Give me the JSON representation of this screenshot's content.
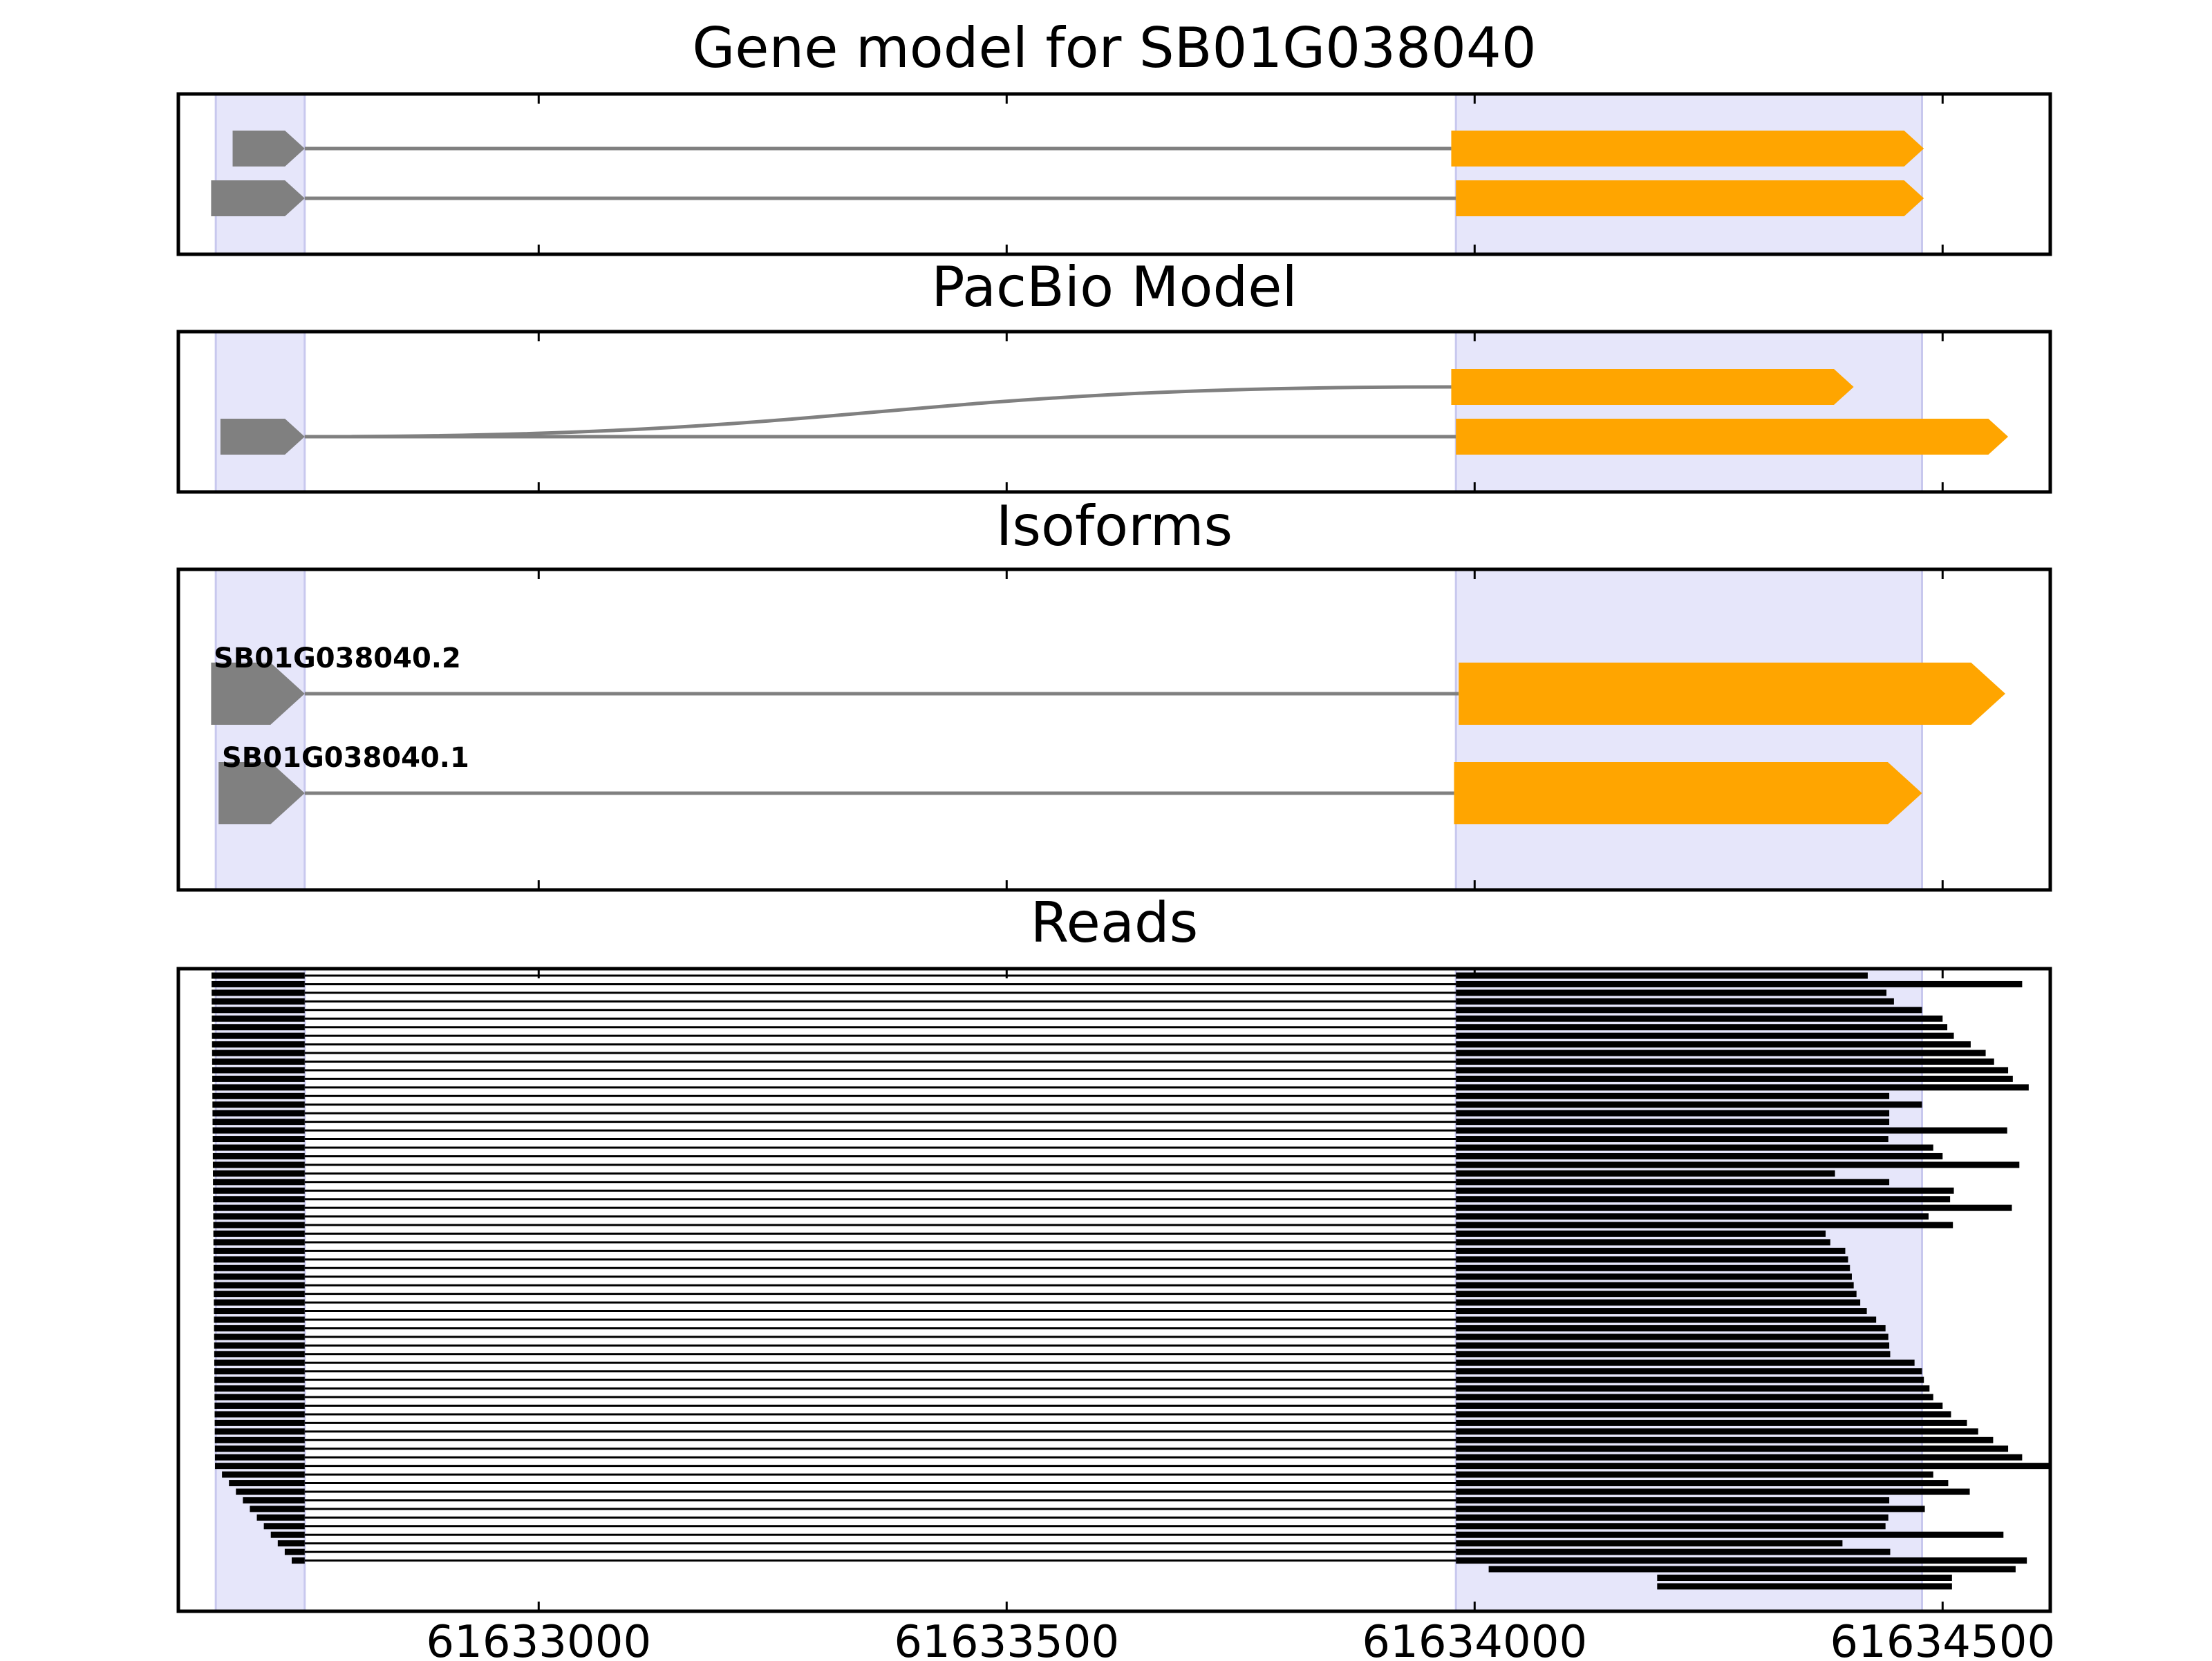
{
  "chart_data": {
    "type": "gene-track",
    "x_axis": {
      "range": [
        61632615,
        61634615
      ],
      "tick_values": [
        61633000,
        61633500,
        61634000,
        61634500
      ],
      "tick_labels": [
        "61633000",
        "61633500",
        "61634000",
        "61634500"
      ],
      "label": ""
    },
    "colors": {
      "utr": "#808080",
      "cds": "#FFA500",
      "intron": "#808080",
      "exon_band": "#E6E6FA",
      "read": "#000000"
    },
    "exon_bands": [
      [
        61632655,
        61632750
      ],
      [
        61633980,
        61634478
      ]
    ],
    "panels": [
      {
        "title": "Gene model for SB01G038040",
        "transcripts": [
          {
            "label": "",
            "blocks": [
              {
                "kind": "utr",
                "start": 61632673,
                "end": 61632750
              },
              {
                "kind": "cds",
                "start": 61633975,
                "end": 61634480
              }
            ]
          },
          {
            "label": "",
            "blocks": [
              {
                "kind": "utr",
                "start": 61632650,
                "end": 61632750
              },
              {
                "kind": "cds",
                "start": 61633980,
                "end": 61634480
              }
            ]
          }
        ]
      },
      {
        "title": "PacBio Model",
        "transcripts": [
          {
            "label": "",
            "blocks": [
              {
                "kind": "cds",
                "start": 61633975,
                "end": 61634405
              }
            ]
          },
          {
            "label": "",
            "blocks": [
              {
                "kind": "utr",
                "start": 61632660,
                "end": 61632750
              },
              {
                "kind": "cds",
                "start": 61633980,
                "end": 61634570
              }
            ]
          }
        ],
        "splice_curve": {
          "from": 61632750,
          "to": 61633975
        }
      },
      {
        "title": "Isoforms",
        "transcripts": [
          {
            "label": "SB01G038040.2",
            "blocks": [
              {
                "kind": "utr",
                "start": 61632650,
                "end": 61632750
              },
              {
                "kind": "cds",
                "start": 61633983,
                "end": 61634567
              }
            ]
          },
          {
            "label": "SB01G038040.1",
            "blocks": [
              {
                "kind": "utr",
                "start": 61632658,
                "end": 61632750
              },
              {
                "kind": "cds",
                "start": 61633978,
                "end": 61634478
              }
            ]
          }
        ]
      },
      {
        "title": "Reads",
        "intron": [
          61632750,
          61633980
        ],
        "read_ends": [
          61634420,
          61634585,
          61634440,
          61634448,
          61634478,
          61634500,
          61634505,
          61634512,
          61634530,
          61634546,
          61634555,
          61634570,
          61634575,
          61634592,
          61634443,
          61634478,
          61634443,
          61634443,
          61634569,
          61634442,
          61634490,
          61634500,
          61634582,
          61634385,
          61634443,
          61634512,
          61634508,
          61634574,
          61634485,
          61634511,
          61634375,
          61634380,
          61634396,
          61634399,
          61634401,
          61634403,
          61634405,
          61634408,
          61634412,
          61634419,
          61634429,
          61634439,
          61634442,
          61634443,
          61634444,
          61634470,
          61634478,
          61634480,
          61634486,
          61634490,
          61634500,
          61634509,
          61634526,
          61634538,
          61634554,
          61634570,
          61634585,
          61634615,
          61634490,
          61634506,
          61634529,
          61634443,
          61634481,
          61634442,
          61634439,
          61634565,
          61634393,
          61634444,
          61634590
        ],
        "partial_reads": [
          {
            "start": 61634015,
            "end": 61634578
          },
          {
            "start": 61634195,
            "end": 61634510
          },
          {
            "start": 61634195,
            "end": 61634510
          }
        ]
      }
    ]
  }
}
